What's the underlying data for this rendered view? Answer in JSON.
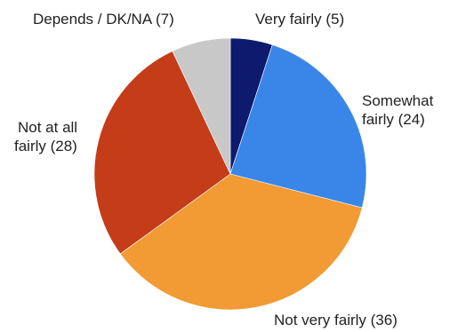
{
  "chart_data": {
    "type": "pie",
    "title": "",
    "start_angle_deg": 0,
    "direction": "clockwise",
    "slices": [
      {
        "label": "Very fairly (5)",
        "value": 5,
        "color": "#0d1a6e"
      },
      {
        "label": "Somewhat fairly (24)",
        "value": 24,
        "color": "#3a86e8"
      },
      {
        "label": "Not very fairly (36)",
        "value": 36,
        "color": "#f29a34"
      },
      {
        "label": "Not at all fairly (28)",
        "value": 28,
        "color": "#c43c18"
      },
      {
        "label": "Depends / DK/NA (7)",
        "value": 7,
        "color": "#c8c8c8"
      }
    ],
    "labels": {
      "very_fairly": "Very fairly (5)",
      "somewhat_line1": "Somewhat",
      "somewhat_line2": "fairly (24)",
      "not_very_fairly": "Not very fairly (36)",
      "not_at_all_line1": "Not at all",
      "not_at_all_line2": "fairly (28)",
      "depends": "Depends / DK/NA (7)"
    }
  }
}
